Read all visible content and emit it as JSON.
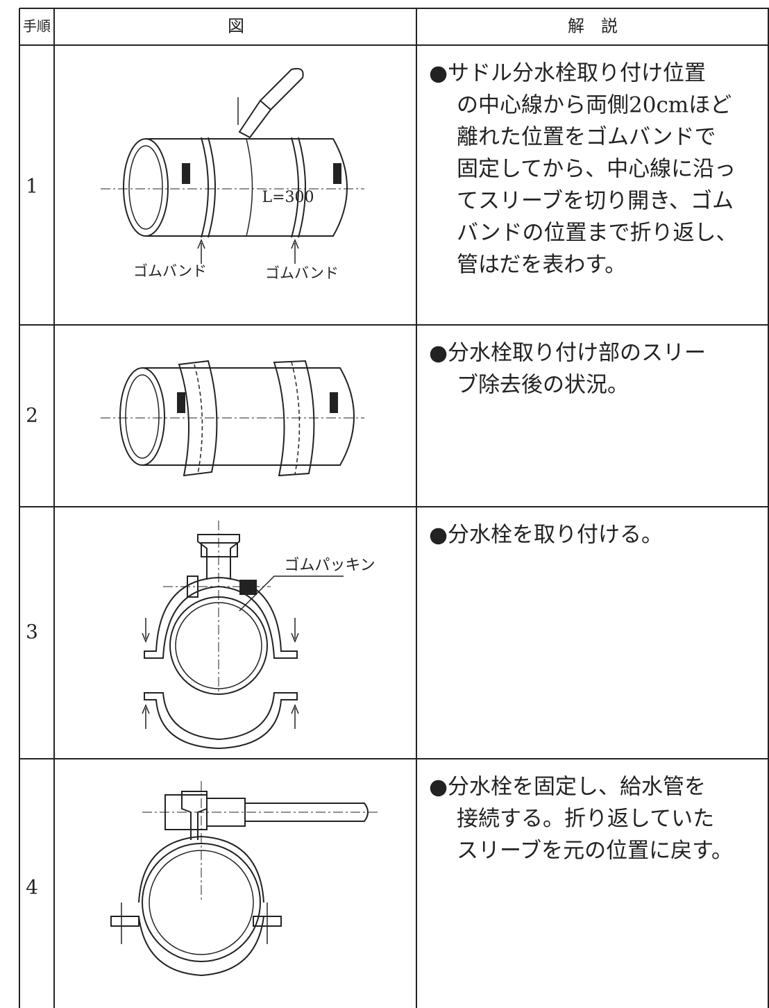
{
  "header": {
    "step": "手順",
    "figure": "図",
    "description": "解　説"
  },
  "rows": [
    {
      "step": "1",
      "figure_labels": [
        "L=300",
        "ゴムバンド",
        "ゴムバンド"
      ],
      "description_lines": [
        "●サドル分水栓取り付け位置",
        "の中心線から両側20cmほど",
        "離れた位置をゴムバンドで",
        "固定してから、中心線に沿っ",
        "てスリーブを切り開き、ゴム",
        "バンドの位置まで折り返し、",
        "管はだを表わす。"
      ]
    },
    {
      "step": "2",
      "figure_labels": [],
      "description_lines": [
        "●分水栓取り付け部のスリー",
        "ブ除去後の状況。"
      ]
    },
    {
      "step": "3",
      "figure_labels": [
        "ゴムパッキン"
      ],
      "description_lines": [
        "●分水栓を取り付ける。"
      ]
    },
    {
      "step": "4",
      "figure_labels": [],
      "description_lines": [
        "●分水栓を固定し、給水管を",
        "接続する。折り返していた",
        "スリーブを元の位置に戻す。"
      ]
    }
  ]
}
